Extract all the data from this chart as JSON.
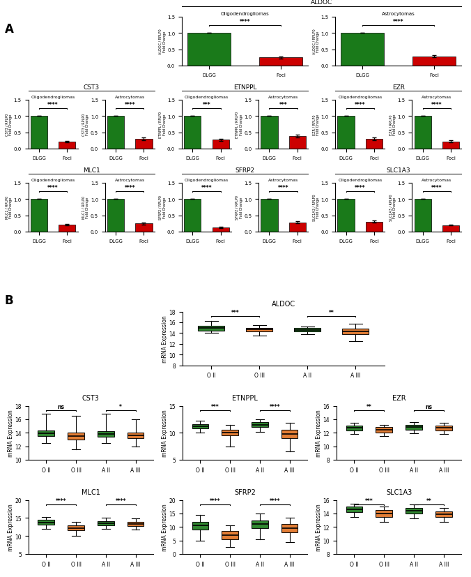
{
  "green": "#1a7a1a",
  "red": "#cc0000",
  "orange_box": "#e07020",
  "green_box": "#1a7a1a",
  "panel_A": {
    "genes": [
      "ALDOC",
      "CST3",
      "ETNPPL",
      "EZR",
      "MLC1",
      "SFRP2",
      "SLC1A3"
    ],
    "bar_data": {
      "ALDOC": {
        "oligo": [
          1.0,
          0.25
        ],
        "astro": [
          1.0,
          0.28
        ]
      },
      "CST3": {
        "oligo": [
          1.0,
          0.22
        ],
        "astro": [
          1.0,
          0.3
        ]
      },
      "ETNPPL": {
        "oligo": [
          1.0,
          0.27
        ],
        "astro": [
          1.0,
          0.38
        ]
      },
      "EZR": {
        "oligo": [
          1.0,
          0.3
        ],
        "astro": [
          1.0,
          0.22
        ]
      },
      "MLC1": {
        "oligo": [
          1.0,
          0.22
        ],
        "astro": [
          1.0,
          0.25
        ]
      },
      "SFRP2": {
        "oligo": [
          1.0,
          0.12
        ],
        "astro": [
          1.0,
          0.28
        ]
      },
      "SLC1A3": {
        "oligo": [
          1.0,
          0.3
        ],
        "astro": [
          1.0,
          0.2
        ]
      }
    },
    "bar_errors": {
      "ALDOC": {
        "oligo": [
          0.0,
          0.03
        ],
        "astro": [
          0.0,
          0.03
        ]
      },
      "CST3": {
        "oligo": [
          0.0,
          0.02
        ],
        "astro": [
          0.0,
          0.04
        ]
      },
      "ETNPPL": {
        "oligo": [
          0.0,
          0.03
        ],
        "astro": [
          0.0,
          0.05
        ]
      },
      "EZR": {
        "oligo": [
          0.0,
          0.04
        ],
        "astro": [
          0.0,
          0.03
        ]
      },
      "MLC1": {
        "oligo": [
          0.0,
          0.02
        ],
        "astro": [
          0.0,
          0.03
        ]
      },
      "SFRP2": {
        "oligo": [
          0.0,
          0.02
        ],
        "astro": [
          0.0,
          0.03
        ]
      },
      "SLC1A3": {
        "oligo": [
          0.0,
          0.03
        ],
        "astro": [
          0.0,
          0.02
        ]
      }
    },
    "sig_labels": {
      "ALDOC": {
        "oligo": "****",
        "astro": "****"
      },
      "CST3": {
        "oligo": "****",
        "astro": "****"
      },
      "ETNPPL": {
        "oligo": "***",
        "astro": "***"
      },
      "EZR": {
        "oligo": "****",
        "astro": "****"
      },
      "MLC1": {
        "oligo": "****",
        "astro": "****"
      },
      "SFRP2": {
        "oligo": "****",
        "astro": "****"
      },
      "SLC1A3": {
        "oligo": "****",
        "astro": "****"
      }
    }
  },
  "panel_B": {
    "ALDOC": {
      "sig": [
        [
          "OII",
          "OIII",
          "***"
        ],
        [
          "AII",
          "AIII",
          "**"
        ]
      ],
      "ylim": [
        8,
        18
      ],
      "yticks": [
        8,
        10,
        12,
        14,
        16,
        18
      ],
      "data": {
        "OII": {
          "q1": 14.5,
          "median": 14.9,
          "q3": 15.4,
          "whislo": 14.0,
          "whishi": 16.2
        },
        "OIII": {
          "q1": 14.3,
          "median": 14.7,
          "q3": 15.0,
          "whislo": 13.5,
          "whishi": 15.5
        },
        "AII": {
          "q1": 14.3,
          "median": 14.6,
          "q3": 14.9,
          "whislo": 13.8,
          "whishi": 15.2
        },
        "AIII": {
          "q1": 13.8,
          "median": 14.3,
          "q3": 14.8,
          "whislo": 12.5,
          "whishi": 15.8
        }
      }
    },
    "CST3": {
      "sig": [
        [
          "OII",
          "OIII",
          "ns"
        ],
        [
          "AII",
          "AIII",
          "*"
        ]
      ],
      "ylim": [
        10,
        18
      ],
      "yticks": [
        10,
        12,
        14,
        16,
        18
      ],
      "data": {
        "OII": {
          "q1": 13.5,
          "median": 13.9,
          "q3": 14.3,
          "whislo": 12.5,
          "whishi": 16.8
        },
        "OIII": {
          "q1": 13.0,
          "median": 13.5,
          "q3": 14.0,
          "whislo": 11.5,
          "whishi": 16.5
        },
        "AII": {
          "q1": 13.4,
          "median": 13.8,
          "q3": 14.2,
          "whislo": 12.5,
          "whishi": 16.8
        },
        "AIII": {
          "q1": 13.2,
          "median": 13.6,
          "q3": 14.0,
          "whislo": 12.0,
          "whishi": 16.0
        }
      }
    },
    "ETNPPL": {
      "sig": [
        [
          "OII",
          "OIII",
          "***"
        ],
        [
          "AII",
          "AIII",
          "****"
        ]
      ],
      "ylim": [
        5,
        15
      ],
      "yticks": [
        5,
        10,
        15
      ],
      "data": {
        "OII": {
          "q1": 10.8,
          "median": 11.2,
          "q3": 11.6,
          "whislo": 10.0,
          "whishi": 12.2
        },
        "OIII": {
          "q1": 9.5,
          "median": 10.0,
          "q3": 10.5,
          "whislo": 7.5,
          "whishi": 11.5
        },
        "AII": {
          "q1": 11.0,
          "median": 11.5,
          "q3": 12.0,
          "whislo": 10.2,
          "whishi": 12.5
        },
        "AIII": {
          "q1": 9.0,
          "median": 9.8,
          "q3": 10.5,
          "whislo": 6.5,
          "whishi": 11.8
        }
      }
    },
    "EZR": {
      "sig": [
        [
          "OII",
          "OIII",
          "**"
        ],
        [
          "AII",
          "AIII",
          "ns"
        ]
      ],
      "ylim": [
        8,
        16
      ],
      "yticks": [
        8,
        10,
        12,
        14,
        16
      ],
      "data": {
        "OII": {
          "q1": 12.3,
          "median": 12.7,
          "q3": 13.1,
          "whislo": 11.8,
          "whishi": 13.5
        },
        "OIII": {
          "q1": 12.0,
          "median": 12.4,
          "q3": 12.8,
          "whislo": 11.5,
          "whishi": 13.2
        },
        "AII": {
          "q1": 12.4,
          "median": 12.8,
          "q3": 13.2,
          "whislo": 11.9,
          "whishi": 13.6
        },
        "AIII": {
          "q1": 12.3,
          "median": 12.7,
          "q3": 13.1,
          "whislo": 11.8,
          "whishi": 13.5
        }
      }
    },
    "MLC1": {
      "sig": [
        [
          "OII",
          "OIII",
          "****"
        ],
        [
          "AII",
          "AIII",
          "****"
        ]
      ],
      "ylim": [
        5,
        20
      ],
      "yticks": [
        5,
        10,
        15,
        20
      ],
      "data": {
        "OII": {
          "q1": 13.2,
          "median": 13.8,
          "q3": 14.5,
          "whislo": 12.0,
          "whishi": 15.2
        },
        "OIII": {
          "q1": 11.5,
          "median": 12.2,
          "q3": 13.0,
          "whislo": 10.0,
          "whishi": 14.0
        },
        "AII": {
          "q1": 13.0,
          "median": 13.6,
          "q3": 14.2,
          "whislo": 12.0,
          "whishi": 15.0
        },
        "AIII": {
          "q1": 12.8,
          "median": 13.4,
          "q3": 14.0,
          "whislo": 11.8,
          "whishi": 14.8
        }
      }
    },
    "SFRP2": {
      "sig": [
        [
          "OII",
          "OIII",
          "****"
        ],
        [
          "AII",
          "AIII",
          "****"
        ]
      ],
      "ylim": [
        0,
        20
      ],
      "yticks": [
        0,
        5,
        10,
        15,
        20
      ],
      "data": {
        "OII": {
          "q1": 9.0,
          "median": 10.5,
          "q3": 12.0,
          "whislo": 5.0,
          "whishi": 14.5
        },
        "OIII": {
          "q1": 5.5,
          "median": 7.0,
          "q3": 8.5,
          "whislo": 2.5,
          "whishi": 10.5
        },
        "AII": {
          "q1": 9.5,
          "median": 11.0,
          "q3": 12.5,
          "whislo": 5.5,
          "whishi": 15.0
        },
        "AIII": {
          "q1": 8.0,
          "median": 9.5,
          "q3": 11.0,
          "whislo": 4.5,
          "whishi": 13.5
        }
      }
    },
    "SLC1A3": {
      "sig": [
        [
          "OII",
          "OIII",
          "***"
        ],
        [
          "AII",
          "AIII",
          "**"
        ]
      ],
      "ylim": [
        8,
        16
      ],
      "yticks": [
        8,
        10,
        12,
        14,
        16
      ],
      "data": {
        "OII": {
          "q1": 14.2,
          "median": 14.6,
          "q3": 15.0,
          "whislo": 13.5,
          "whishi": 15.5
        },
        "OIII": {
          "q1": 13.5,
          "median": 14.0,
          "q3": 14.5,
          "whislo": 12.8,
          "whishi": 15.0
        },
        "AII": {
          "q1": 14.0,
          "median": 14.4,
          "q3": 14.8,
          "whislo": 13.3,
          "whishi": 15.3
        },
        "AIII": {
          "q1": 13.5,
          "median": 13.9,
          "q3": 14.3,
          "whislo": 12.8,
          "whishi": 14.8
        }
      }
    }
  }
}
